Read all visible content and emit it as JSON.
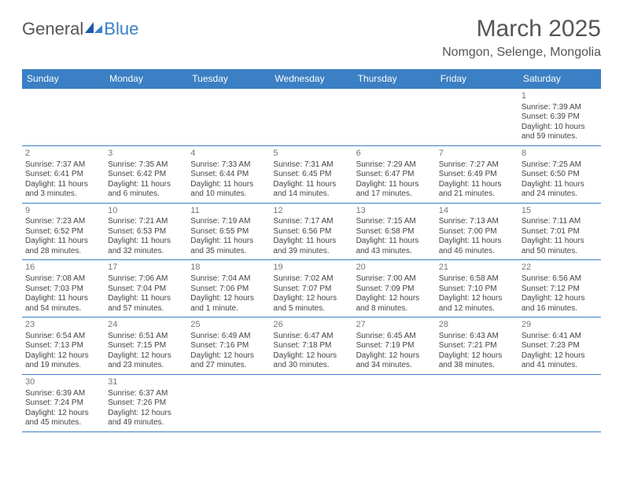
{
  "brand": {
    "part1": "General",
    "part2": "Blue"
  },
  "title": "March 2025",
  "location": "Nomgon, Selenge, Mongolia",
  "colors": {
    "header_bg": "#3b7fc4",
    "header_text": "#ffffff",
    "rule": "#3b7fc4",
    "text": "#444444"
  },
  "columns": [
    "Sunday",
    "Monday",
    "Tuesday",
    "Wednesday",
    "Thursday",
    "Friday",
    "Saturday"
  ],
  "weeks": [
    [
      null,
      null,
      null,
      null,
      null,
      null,
      {
        "n": "1",
        "sr": "7:39 AM",
        "ss": "6:39 PM",
        "dl": "10 hours and 59 minutes."
      }
    ],
    [
      {
        "n": "2",
        "sr": "7:37 AM",
        "ss": "6:41 PM",
        "dl": "11 hours and 3 minutes."
      },
      {
        "n": "3",
        "sr": "7:35 AM",
        "ss": "6:42 PM",
        "dl": "11 hours and 6 minutes."
      },
      {
        "n": "4",
        "sr": "7:33 AM",
        "ss": "6:44 PM",
        "dl": "11 hours and 10 minutes."
      },
      {
        "n": "5",
        "sr": "7:31 AM",
        "ss": "6:45 PM",
        "dl": "11 hours and 14 minutes."
      },
      {
        "n": "6",
        "sr": "7:29 AM",
        "ss": "6:47 PM",
        "dl": "11 hours and 17 minutes."
      },
      {
        "n": "7",
        "sr": "7:27 AM",
        "ss": "6:49 PM",
        "dl": "11 hours and 21 minutes."
      },
      {
        "n": "8",
        "sr": "7:25 AM",
        "ss": "6:50 PM",
        "dl": "11 hours and 24 minutes."
      }
    ],
    [
      {
        "n": "9",
        "sr": "7:23 AM",
        "ss": "6:52 PM",
        "dl": "11 hours and 28 minutes."
      },
      {
        "n": "10",
        "sr": "7:21 AM",
        "ss": "6:53 PM",
        "dl": "11 hours and 32 minutes."
      },
      {
        "n": "11",
        "sr": "7:19 AM",
        "ss": "6:55 PM",
        "dl": "11 hours and 35 minutes."
      },
      {
        "n": "12",
        "sr": "7:17 AM",
        "ss": "6:56 PM",
        "dl": "11 hours and 39 minutes."
      },
      {
        "n": "13",
        "sr": "7:15 AM",
        "ss": "6:58 PM",
        "dl": "11 hours and 43 minutes."
      },
      {
        "n": "14",
        "sr": "7:13 AM",
        "ss": "7:00 PM",
        "dl": "11 hours and 46 minutes."
      },
      {
        "n": "15",
        "sr": "7:11 AM",
        "ss": "7:01 PM",
        "dl": "11 hours and 50 minutes."
      }
    ],
    [
      {
        "n": "16",
        "sr": "7:08 AM",
        "ss": "7:03 PM",
        "dl": "11 hours and 54 minutes."
      },
      {
        "n": "17",
        "sr": "7:06 AM",
        "ss": "7:04 PM",
        "dl": "11 hours and 57 minutes."
      },
      {
        "n": "18",
        "sr": "7:04 AM",
        "ss": "7:06 PM",
        "dl": "12 hours and 1 minute."
      },
      {
        "n": "19",
        "sr": "7:02 AM",
        "ss": "7:07 PM",
        "dl": "12 hours and 5 minutes."
      },
      {
        "n": "20",
        "sr": "7:00 AM",
        "ss": "7:09 PM",
        "dl": "12 hours and 8 minutes."
      },
      {
        "n": "21",
        "sr": "6:58 AM",
        "ss": "7:10 PM",
        "dl": "12 hours and 12 minutes."
      },
      {
        "n": "22",
        "sr": "6:56 AM",
        "ss": "7:12 PM",
        "dl": "12 hours and 16 minutes."
      }
    ],
    [
      {
        "n": "23",
        "sr": "6:54 AM",
        "ss": "7:13 PM",
        "dl": "12 hours and 19 minutes."
      },
      {
        "n": "24",
        "sr": "6:51 AM",
        "ss": "7:15 PM",
        "dl": "12 hours and 23 minutes."
      },
      {
        "n": "25",
        "sr": "6:49 AM",
        "ss": "7:16 PM",
        "dl": "12 hours and 27 minutes."
      },
      {
        "n": "26",
        "sr": "6:47 AM",
        "ss": "7:18 PM",
        "dl": "12 hours and 30 minutes."
      },
      {
        "n": "27",
        "sr": "6:45 AM",
        "ss": "7:19 PM",
        "dl": "12 hours and 34 minutes."
      },
      {
        "n": "28",
        "sr": "6:43 AM",
        "ss": "7:21 PM",
        "dl": "12 hours and 38 minutes."
      },
      {
        "n": "29",
        "sr": "6:41 AM",
        "ss": "7:23 PM",
        "dl": "12 hours and 41 minutes."
      }
    ],
    [
      {
        "n": "30",
        "sr": "6:39 AM",
        "ss": "7:24 PM",
        "dl": "12 hours and 45 minutes."
      },
      {
        "n": "31",
        "sr": "6:37 AM",
        "ss": "7:26 PM",
        "dl": "12 hours and 49 minutes."
      },
      null,
      null,
      null,
      null,
      null
    ]
  ],
  "labels": {
    "sunrise": "Sunrise:",
    "sunset": "Sunset:",
    "daylight": "Daylight:"
  }
}
